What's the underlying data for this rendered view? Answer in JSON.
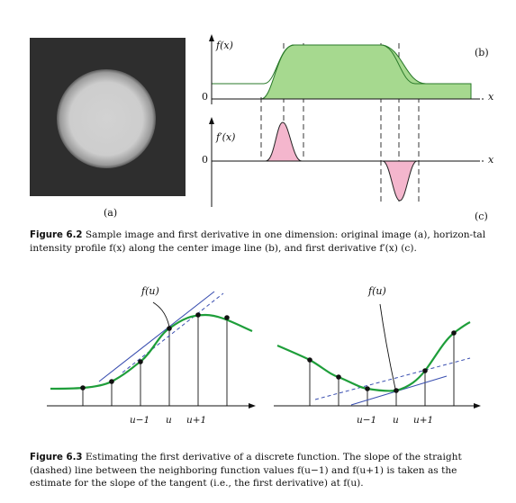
{
  "fig62": {
    "panel_a_label": "(a)",
    "panel_b_label": "(b)",
    "panel_c_label": "(c)",
    "fx_label": "f(x)",
    "fpx_label": "f′(x)",
    "zero_b": "0",
    "zero_c": "0",
    "x_b": "x",
    "x_c": "x",
    "caption_bold": "Figure 6.2",
    "caption_text": "Sample image and first derivative in one dimension: original image (a), horizon-tal intensity profile f(x) along the center image line (b), and first derivative f′(x) (c).",
    "colors": {
      "profile_fill": "#a6d98f",
      "deriv_fill": "#f4b6cd",
      "image_bg": "#2e2e2e",
      "disk": "#cfcfcf"
    }
  },
  "fig63": {
    "left_fu_label": "f(u)",
    "right_fu_label": "f(u)",
    "left_ticks": [
      "u−1",
      "u",
      "u+1"
    ],
    "right_ticks": [
      "u−1",
      "u",
      "u+1"
    ],
    "caption_bold": "Figure 6.3",
    "caption_text": "Estimating the first derivative of a discrete function. The slope of the straight (dashed) line between the neighboring function values f(u−1) and f(u+1) is taken as the estimate for the slope of the tangent (i.e., the first derivative) at f(u).",
    "colors": {
      "curve": "#1e9e3a",
      "tangent": "#3a4fb0"
    }
  }
}
